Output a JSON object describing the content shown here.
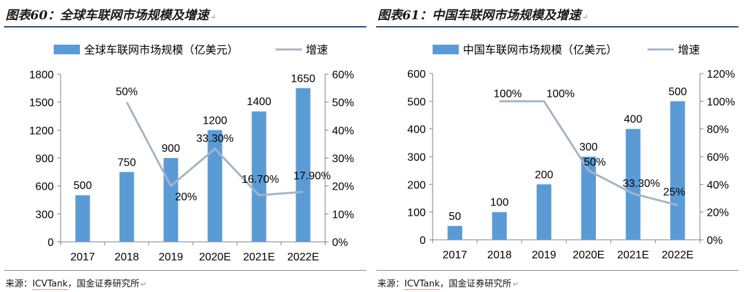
{
  "colors": {
    "bar": "#5b9bd5",
    "line": "#a5b5c5",
    "title_rule": "#2c4a7d",
    "axis": "#7f7f7f"
  },
  "panels": [
    {
      "title": "图表60：全球车联网市场规模及增速",
      "source_prefix": "来源：",
      "source_name": "ICVTank",
      "source_suffix": "，国金证券研究所",
      "chart_data": {
        "type": "bar",
        "categories": [
          "2017",
          "2018",
          "2019",
          "2020E",
          "2021E",
          "2022E"
        ],
        "series": [
          {
            "name": "全球车联网市场规模（亿美元）",
            "type": "bar",
            "axis": "left",
            "values": [
              500,
              750,
              900,
              1200,
              1400,
              1650
            ],
            "labels": [
              "500",
              "750",
              "900",
              "1200",
              "1400",
              "1650"
            ]
          },
          {
            "name": "增速",
            "type": "line",
            "axis": "right",
            "values": [
              null,
              50,
              20,
              33.3,
              16.7,
              17.9
            ],
            "labels": [
              null,
              "50%",
              "20%",
              "33.30%",
              "16.70%",
              "17.90%"
            ]
          }
        ],
        "y_left": {
          "min": 0,
          "max": 1800,
          "ticks": [
            "0",
            "300",
            "600",
            "900",
            "1200",
            "1500",
            "1800"
          ]
        },
        "y_right": {
          "min": 0,
          "max": 60,
          "ticks": [
            "0%",
            "10%",
            "20%",
            "30%",
            "40%",
            "50%",
            "60%"
          ]
        },
        "legend": "top",
        "grid": false
      }
    },
    {
      "title": "图表61：中国车联网市场规模及增速",
      "source_prefix": "来源：",
      "source_name": "ICVTank",
      "source_suffix": "，国金证券研究所",
      "chart_data": {
        "type": "bar",
        "categories": [
          "2017",
          "2018",
          "2019",
          "2020E",
          "2021E",
          "2022E"
        ],
        "series": [
          {
            "name": "中国车联网市场规模（亿美元）",
            "type": "bar",
            "axis": "left",
            "values": [
              50,
              100,
              200,
              300,
              400,
              500
            ],
            "labels": [
              "50",
              "100",
              "200",
              "300",
              "400",
              "500"
            ]
          },
          {
            "name": "增速",
            "type": "line",
            "axis": "right",
            "values": [
              null,
              100,
              100,
              50,
              33.3,
              25
            ],
            "labels": [
              null,
              "100%",
              "100%",
              "50%",
              "33.30%",
              "25%"
            ]
          }
        ],
        "y_left": {
          "min": 0,
          "max": 600,
          "ticks": [
            "0",
            "100",
            "200",
            "300",
            "400",
            "500",
            "600"
          ]
        },
        "y_right": {
          "min": 0,
          "max": 120,
          "ticks": [
            "0%",
            "20%",
            "40%",
            "60%",
            "80%",
            "100%",
            "120%"
          ]
        },
        "legend": "top",
        "grid": false
      }
    }
  ]
}
